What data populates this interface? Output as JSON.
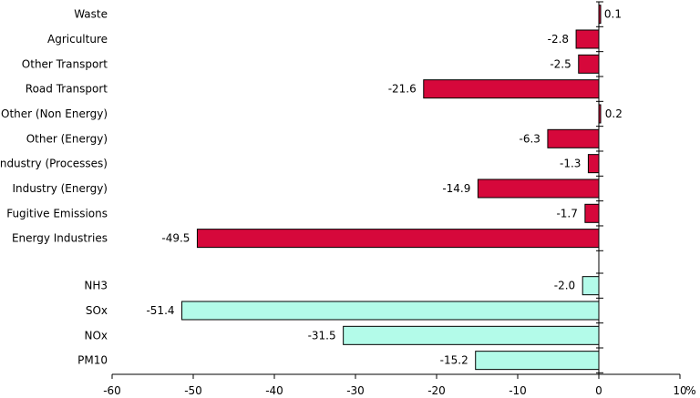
{
  "chart_data": {
    "type": "bar",
    "orientation": "horizontal",
    "groups": [
      {
        "name": "",
        "color": "#d6083b",
        "categories": [
          "Waste",
          "Agriculture",
          "Other Transport",
          "Road Transport",
          "Other (Non Energy)",
          "Other (Energy)",
          "Industry (Processes)",
          "Industry (Energy)",
          "Fugitive Emissions",
          "Energy Industries"
        ],
        "values": [
          0.1,
          -2.8,
          -2.5,
          -21.6,
          0.2,
          -6.3,
          -1.3,
          -14.9,
          -1.7,
          -49.5
        ],
        "labels": [
          "0.1",
          "-2.8",
          "-2.5",
          "-21.6",
          "0.2",
          "-6.3",
          "-1.3",
          "-14.9",
          "-1.7",
          "-49.5"
        ]
      },
      {
        "name": "",
        "color": "#b3fbe9",
        "categories": [
          "NH3",
          "SOx",
          "NOx",
          "PM10"
        ],
        "values": [
          -2.0,
          -51.4,
          -31.5,
          -15.2
        ],
        "labels": [
          "-2.0",
          "-51.4",
          "-31.5",
          "-15.2"
        ]
      }
    ],
    "x_ticks": [
      "-60",
      "-50",
      "-40",
      "-30",
      "-20",
      "-10",
      "0",
      "10"
    ],
    "x_unit": "%",
    "xlim": [
      -60,
      10
    ],
    "grid": false,
    "legend": "none"
  }
}
